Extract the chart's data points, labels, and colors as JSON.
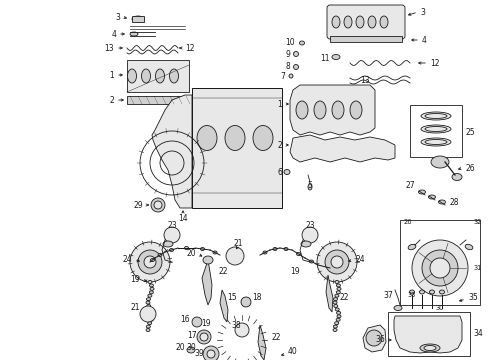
{
  "bg": "#ffffff",
  "lc": "#1a1a1a",
  "fc_light": "#e8e8e8",
  "fc_mid": "#d0d0d0",
  "fc_dark": "#b0b0b0",
  "fig_w": 4.9,
  "fig_h": 3.6,
  "dpi": 100,
  "lw": 0.6,
  "fs": 5.5,
  "fs_sm": 4.8
}
